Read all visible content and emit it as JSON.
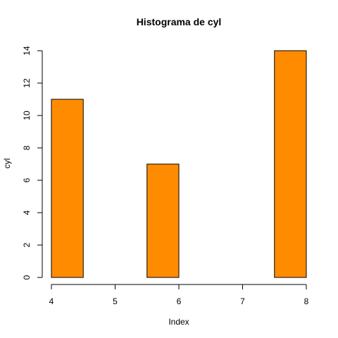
{
  "chart_data": {
    "type": "bar",
    "title": "Histograma de  cyl",
    "xlabel": "Index",
    "ylabel": "cyl",
    "xlim": [
      4,
      8
    ],
    "ylim": [
      0,
      14
    ],
    "x_ticks": [
      4,
      5,
      6,
      7,
      8
    ],
    "y_ticks": [
      0,
      2,
      4,
      6,
      8,
      10,
      12,
      14
    ],
    "bins": [
      {
        "start": 4.0,
        "end": 4.5,
        "value": 11
      },
      {
        "start": 4.5,
        "end": 5.0,
        "value": 0
      },
      {
        "start": 5.0,
        "end": 5.5,
        "value": 0
      },
      {
        "start": 5.5,
        "end": 6.0,
        "value": 7
      },
      {
        "start": 6.0,
        "end": 6.5,
        "value": 0
      },
      {
        "start": 6.5,
        "end": 7.0,
        "value": 0
      },
      {
        "start": 7.0,
        "end": 7.5,
        "value": 0
      },
      {
        "start": 7.5,
        "end": 8.0,
        "value": 14
      }
    ],
    "bar_color": "#FF8C00",
    "grid": false
  }
}
